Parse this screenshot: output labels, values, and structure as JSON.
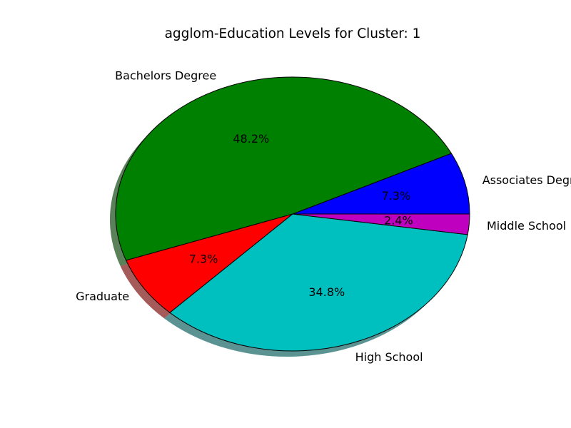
{
  "chart_data": {
    "type": "pie",
    "title": "agglom-Education Levels for Cluster: 1",
    "slices": [
      {
        "label": "Associates Degree",
        "value": 7.3,
        "pct_label": "7.3%",
        "color": "#0000ff"
      },
      {
        "label": "Bachelors Degree",
        "value": 48.2,
        "pct_label": "48.2%",
        "color": "#008000"
      },
      {
        "label": "Graduate",
        "value": 7.3,
        "pct_label": "7.3%",
        "color": "#ff0000"
      },
      {
        "label": "High School",
        "value": 34.8,
        "pct_label": "34.8%",
        "color": "#00bfbf"
      },
      {
        "label": "Middle School",
        "value": 2.4,
        "pct_label": "2.4%",
        "color": "#bf00bf"
      }
    ],
    "start_angle": 0,
    "direction": "counterclockwise",
    "shadow": true
  }
}
